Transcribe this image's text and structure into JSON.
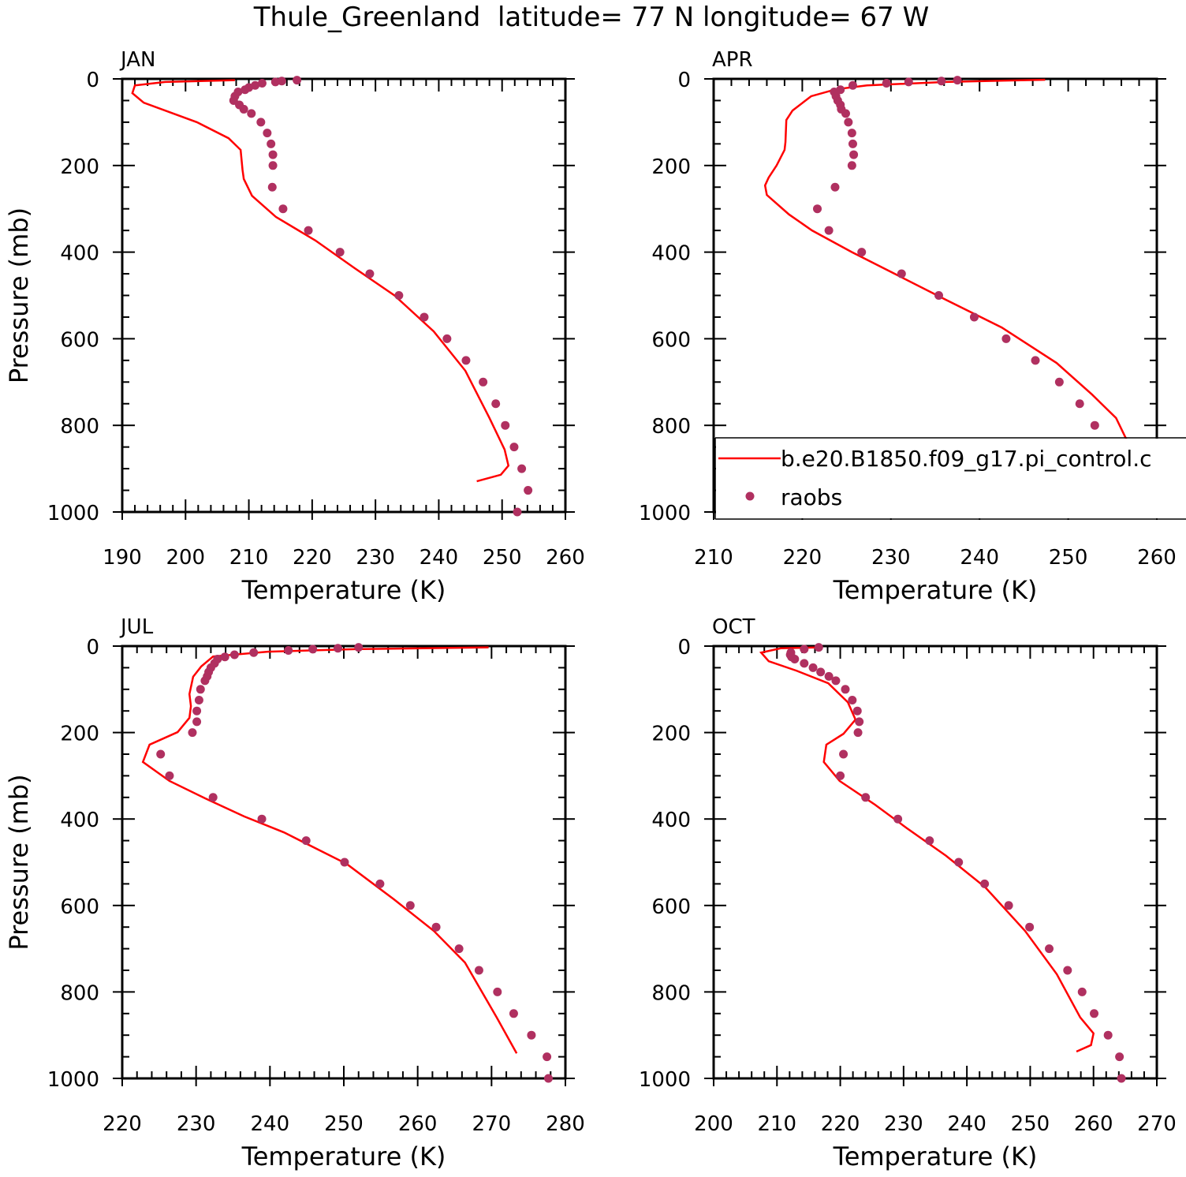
{
  "chart_data": {
    "type": "line",
    "title": "Thule_Greenland  latitude= 77 N longitude= 67 W",
    "legend": {
      "placement": "inside-right (APR panel)",
      "entries": [
        {
          "label": "b.e20.B1850.f09_g17.pi_control.c",
          "kind": "line",
          "color": "#ff0000"
        },
        {
          "label": "raobs",
          "kind": "marker",
          "color": "#b03060"
        }
      ]
    },
    "panels": [
      {
        "label": "JAN",
        "xlabel": "Temperature (K)",
        "ylabel": "Pressure (mb)",
        "xlim": [
          190,
          260
        ],
        "ylim": [
          1000,
          0
        ],
        "xticks": [
          190,
          200,
          210,
          220,
          230,
          240,
          250,
          260
        ],
        "yticks": [
          0,
          200,
          400,
          600,
          800,
          1000
        ],
        "model": {
          "p": [
            3,
            7,
            15,
            33,
            55,
            100,
            137,
            164,
            210,
            231,
            270,
            319,
            373,
            437,
            500,
            583,
            674,
            783,
            856,
            893,
            914,
            929
          ],
          "t": [
            207.8,
            196.8,
            192,
            191.6,
            193.4,
            201.8,
            206.8,
            208.7,
            209,
            209.2,
            210.5,
            214.3,
            220.5,
            226.7,
            233,
            239.2,
            244.2,
            248,
            250.4,
            251,
            249.8,
            246
          ]
        },
        "raobs": {
          "p": [
            1000,
            950,
            900,
            850,
            800,
            750,
            700,
            650,
            600,
            550,
            500,
            450,
            400,
            350,
            300,
            250,
            200,
            175,
            150,
            125,
            100,
            80,
            70,
            60,
            50,
            40,
            30,
            25,
            20,
            15,
            10,
            7,
            5,
            3
          ],
          "t": [
            252.4,
            254.1,
            253.1,
            251.9,
            250.5,
            249,
            247,
            244.3,
            241.3,
            237.7,
            233.7,
            229.1,
            224.4,
            219.4,
            215.4,
            213.7,
            213.8,
            213.8,
            213.5,
            212.9,
            211.9,
            210.4,
            209.2,
            208.5,
            207.6,
            207.8,
            208.3,
            209.4,
            210,
            211,
            212.1,
            214.2,
            215.2,
            217.6
          ]
        }
      },
      {
        "label": "APR",
        "xlabel": "Temperature (K)",
        "ylabel": "",
        "xlim": [
          210,
          260
        ],
        "ylim": [
          1000,
          0
        ],
        "xticks": [
          210,
          220,
          230,
          240,
          250,
          260
        ],
        "yticks": [
          0,
          200,
          400,
          600,
          800,
          1000
        ],
        "model": {
          "p": [
            2,
            7,
            15,
            24,
            40,
            73,
            95,
            146,
            164,
            200,
            228,
            246,
            268,
            313,
            350,
            400,
            455,
            510,
            574,
            656,
            729,
            783,
            838,
            893,
            916,
            938
          ],
          "t": [
            247.4,
            236.2,
            227.3,
            223.8,
            221,
            218.9,
            218.2,
            218.1,
            218,
            217.1,
            216.2,
            215.8,
            216,
            218.5,
            221.1,
            225.6,
            230.9,
            236.2,
            242.5,
            248.7,
            252.7,
            255.4,
            256.7,
            257.2,
            257,
            255
          ]
        },
        "raobs": {
          "p": [
            1000,
            950,
            900,
            850,
            800,
            750,
            700,
            650,
            600,
            550,
            500,
            450,
            400,
            350,
            300,
            250,
            200,
            175,
            150,
            125,
            100,
            80,
            70,
            60,
            50,
            40,
            30,
            25,
            15,
            10,
            7,
            5,
            3
          ],
          "t": [
            257.2,
            257.2,
            255.8,
            254.4,
            253,
            251.3,
            249,
            246.3,
            243,
            239.4,
            235.4,
            231.2,
            226.7,
            223,
            221.7,
            223.7,
            225.6,
            225.8,
            225.7,
            225.6,
            225.2,
            224.9,
            224.4,
            224.3,
            224,
            223.8,
            223.6,
            224.3,
            225.7,
            229.5,
            232,
            235.7,
            237.5
          ]
        }
      },
      {
        "label": "JUL",
        "xlabel": "Temperature (K)",
        "ylabel": "Pressure (mb)",
        "xlim": [
          220,
          280
        ],
        "ylim": [
          1000,
          0
        ],
        "xticks": [
          220,
          230,
          240,
          250,
          260,
          270,
          280
        ],
        "yticks": [
          0,
          200,
          400,
          600,
          800,
          1000
        ],
        "model": {
          "p": [
            3,
            7,
            13,
            24,
            47,
            71,
            111,
            139,
            166,
            199,
            228,
            268,
            312,
            352,
            394,
            431,
            504,
            586,
            659,
            732,
            859,
            942
          ],
          "t": [
            269.6,
            251.5,
            239.7,
            232.3,
            230.7,
            229.6,
            229.1,
            229.3,
            229.1,
            227.5,
            223.7,
            222.8,
            226.4,
            231.2,
            236.5,
            241.9,
            250.4,
            256.8,
            262.2,
            266.4,
            270.7,
            273.4
          ]
        },
        "raobs": {
          "p": [
            1000,
            950,
            900,
            850,
            800,
            750,
            700,
            650,
            600,
            550,
            500,
            450,
            400,
            350,
            300,
            250,
            200,
            175,
            150,
            125,
            100,
            80,
            70,
            60,
            50,
            40,
            30,
            25,
            20,
            15,
            10,
            7,
            5,
            3
          ],
          "t": [
            277.7,
            277.5,
            275.4,
            273,
            270.8,
            268.3,
            265.6,
            262.5,
            259,
            254.9,
            250.1,
            244.9,
            238.9,
            232.3,
            226.4,
            225.2,
            229.5,
            230.1,
            230.1,
            230.4,
            230.6,
            231.2,
            231.5,
            231.7,
            232,
            232.5,
            232.9,
            233.9,
            235.2,
            237.8,
            242.5,
            245.8,
            249.2,
            252
          ]
        }
      },
      {
        "label": "OCT",
        "xlabel": "Temperature (K)",
        "ylabel": "",
        "xlim": [
          200,
          270
        ],
        "ylim": [
          1000,
          0
        ],
        "xticks": [
          200,
          210,
          220,
          230,
          240,
          250,
          260,
          270
        ],
        "yticks": [
          0,
          200,
          400,
          600,
          800,
          1000
        ],
        "model": {
          "p": [
            3,
            5,
            15,
            35,
            57,
            86,
            130,
            170,
            203,
            228,
            268,
            312,
            367,
            421,
            485,
            558,
            659,
            759,
            859,
            896,
            923,
            938
          ],
          "t": [
            216.8,
            210.6,
            207.5,
            208.7,
            213.1,
            218.1,
            221.2,
            222.4,
            220.5,
            217.8,
            217.4,
            219.9,
            225.5,
            230.5,
            236.7,
            242.9,
            249.2,
            254.2,
            257.9,
            260,
            259.6,
            257.3
          ]
        },
        "raobs": {
          "p": [
            1000,
            950,
            900,
            850,
            800,
            750,
            700,
            650,
            600,
            550,
            500,
            450,
            400,
            350,
            300,
            250,
            200,
            175,
            150,
            125,
            100,
            80,
            70,
            60,
            50,
            40,
            30,
            25,
            20,
            15,
            7,
            3
          ],
          "t": [
            264.4,
            264.1,
            262.3,
            260.1,
            258.2,
            255.9,
            253,
            249.9,
            246.6,
            242.8,
            238.7,
            234.1,
            229.1,
            224,
            220,
            220.5,
            222.8,
            223,
            222.7,
            221.9,
            220.8,
            219.3,
            218.2,
            216.9,
            215.7,
            214.3,
            212.8,
            212.3,
            212.1,
            212.2,
            214.3,
            216.6
          ]
        }
      }
    ]
  }
}
